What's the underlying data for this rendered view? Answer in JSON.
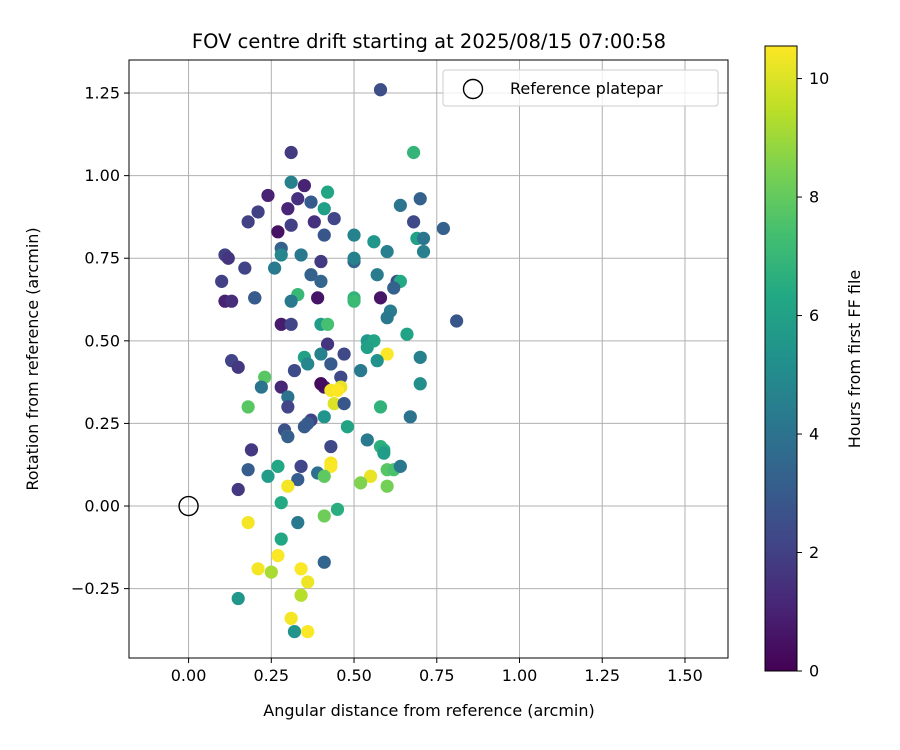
{
  "chart_data": {
    "type": "scatter",
    "title": "FOV centre drift starting at 2025/08/15 07:00:58",
    "xlabel": "Angular distance from reference (arcmin)",
    "ylabel": "Rotation from reference (arcmin)",
    "xlim": [
      -0.18,
      1.63
    ],
    "ylim": [
      -0.46,
      1.35
    ],
    "xticks": [
      0.0,
      0.25,
      0.5,
      0.75,
      1.0,
      1.25,
      1.5
    ],
    "xtick_labels": [
      "0.00",
      "0.25",
      "0.50",
      "0.75",
      "1.00",
      "1.25",
      "1.50"
    ],
    "yticks": [
      -0.25,
      0.0,
      0.25,
      0.5,
      0.75,
      1.0,
      1.25
    ],
    "ytick_labels": [
      "−0.25",
      "0.00",
      "0.25",
      "0.50",
      "0.75",
      "1.00",
      "1.25"
    ],
    "grid": true,
    "legend": {
      "placement": "top-right",
      "label": "Reference platepar"
    },
    "reference_point": {
      "x": 0.0,
      "y": 0.0
    },
    "colorbar": {
      "label": "Hours from first FF file",
      "min": 0,
      "max": 10.55,
      "colormap": "viridis",
      "ticks": [
        0,
        2,
        4,
        6,
        8,
        10
      ],
      "tick_labels": [
        "0",
        "2",
        "4",
        "6",
        "8",
        "10"
      ]
    },
    "points": [
      [
        0.58,
        1.26,
        2.5
      ],
      [
        0.31,
        1.07,
        1.8
      ],
      [
        0.68,
        1.07,
        6.9
      ],
      [
        0.31,
        0.98,
        4.6
      ],
      [
        0.35,
        0.97,
        1.0
      ],
      [
        0.42,
        0.95,
        6.2
      ],
      [
        0.7,
        0.93,
        3.3
      ],
      [
        0.24,
        0.94,
        1.0
      ],
      [
        0.33,
        0.93,
        1.5
      ],
      [
        0.37,
        0.92,
        3.0
      ],
      [
        0.41,
        0.9,
        5.9
      ],
      [
        0.3,
        0.9,
        1.1
      ],
      [
        0.21,
        0.89,
        2.0
      ],
      [
        0.44,
        0.87,
        2.2
      ],
      [
        0.64,
        0.91,
        4.1
      ],
      [
        0.18,
        0.86,
        2.0
      ],
      [
        0.31,
        0.85,
        2.0
      ],
      [
        0.38,
        0.86,
        1.5
      ],
      [
        0.68,
        0.86,
        2.3
      ],
      [
        0.77,
        0.84,
        3.3
      ],
      [
        0.27,
        0.83,
        0.5
      ],
      [
        0.5,
        0.82,
        4.7
      ],
      [
        0.41,
        0.82,
        2.8
      ],
      [
        0.69,
        0.81,
        6.0
      ],
      [
        0.71,
        0.81,
        4.1
      ],
      [
        0.56,
        0.8,
        5.5
      ],
      [
        0.28,
        0.78,
        3.3
      ],
      [
        0.6,
        0.77,
        4.5
      ],
      [
        0.11,
        0.76,
        2.0
      ],
      [
        0.12,
        0.75,
        1.6
      ],
      [
        0.28,
        0.76,
        4.8
      ],
      [
        0.34,
        0.76,
        4.2
      ],
      [
        0.4,
        0.74,
        1.8
      ],
      [
        0.5,
        0.74,
        3.4
      ],
      [
        0.5,
        0.75,
        4.6
      ],
      [
        0.71,
        0.77,
        4.5
      ],
      [
        0.17,
        0.72,
        2.1
      ],
      [
        0.26,
        0.72,
        4.3
      ],
      [
        0.37,
        0.7,
        3.3
      ],
      [
        0.57,
        0.7,
        4.4
      ],
      [
        0.1,
        0.68,
        2.0
      ],
      [
        0.4,
        0.68,
        3.4
      ],
      [
        0.63,
        0.68,
        2.5
      ],
      [
        0.64,
        0.68,
        6.4
      ],
      [
        0.62,
        0.66,
        3.3
      ],
      [
        0.33,
        0.64,
        7.0
      ],
      [
        0.11,
        0.62,
        1.0
      ],
      [
        0.13,
        0.62,
        1.4
      ],
      [
        0.2,
        0.63,
        2.3
      ],
      [
        0.2,
        0.63,
        3.0
      ],
      [
        0.39,
        0.63,
        0.6
      ],
      [
        0.5,
        0.63,
        6.8
      ],
      [
        0.58,
        0.63,
        0.6
      ],
      [
        0.5,
        0.62,
        7.1
      ],
      [
        0.31,
        0.62,
        4.2
      ],
      [
        0.61,
        0.59,
        4.4
      ],
      [
        0.6,
        0.57,
        4.2
      ],
      [
        0.81,
        0.56,
        2.8
      ],
      [
        0.28,
        0.55,
        0.8
      ],
      [
        0.31,
        0.55,
        2.2
      ],
      [
        0.4,
        0.55,
        5.8
      ],
      [
        0.42,
        0.55,
        7.4
      ],
      [
        0.66,
        0.52,
        6.1
      ],
      [
        0.54,
        0.5,
        5.6
      ],
      [
        0.56,
        0.5,
        6.2
      ],
      [
        0.42,
        0.49,
        1.6
      ],
      [
        0.54,
        0.48,
        5.9
      ],
      [
        0.4,
        0.46,
        4.6
      ],
      [
        0.47,
        0.46,
        2.3
      ],
      [
        0.6,
        0.46,
        10.5
      ],
      [
        0.35,
        0.45,
        6.0
      ],
      [
        0.7,
        0.45,
        4.6
      ],
      [
        0.13,
        0.44,
        2.1
      ],
      [
        0.36,
        0.43,
        4.8
      ],
      [
        0.15,
        0.42,
        1.7
      ],
      [
        0.43,
        0.43,
        3.0
      ],
      [
        0.57,
        0.44,
        5.3
      ],
      [
        0.32,
        0.41,
        2.4
      ],
      [
        0.52,
        0.41,
        4.3
      ],
      [
        0.46,
        0.39,
        2.3
      ],
      [
        0.23,
        0.39,
        7.8
      ],
      [
        0.22,
        0.36,
        4.0
      ],
      [
        0.28,
        0.36,
        1.2
      ],
      [
        0.4,
        0.37,
        1.0
      ],
      [
        0.41,
        0.36,
        0.7
      ],
      [
        0.4,
        0.37,
        0.3
      ],
      [
        0.43,
        0.35,
        10.4
      ],
      [
        0.46,
        0.36,
        10.2
      ],
      [
        0.45,
        0.35,
        10.6
      ],
      [
        0.7,
        0.37,
        5.2
      ],
      [
        0.3,
        0.33,
        4.0
      ],
      [
        0.44,
        0.31,
        10.0
      ],
      [
        0.47,
        0.31,
        2.8
      ],
      [
        0.18,
        0.3,
        7.8
      ],
      [
        0.3,
        0.3,
        2.2
      ],
      [
        0.58,
        0.3,
        6.8
      ],
      [
        0.37,
        0.26,
        2.1
      ],
      [
        0.41,
        0.27,
        5.4
      ],
      [
        0.67,
        0.27,
        4.0
      ],
      [
        0.36,
        0.25,
        3.0
      ],
      [
        0.35,
        0.24,
        3.0
      ],
      [
        0.48,
        0.24,
        6.1
      ],
      [
        0.29,
        0.23,
        2.6
      ],
      [
        0.3,
        0.21,
        10.1
      ],
      [
        0.54,
        0.2,
        4.3
      ],
      [
        0.58,
        0.18,
        6.7
      ],
      [
        0.59,
        0.17,
        6.5
      ],
      [
        0.19,
        0.17,
        1.7
      ],
      [
        0.3,
        0.21,
        3.2
      ],
      [
        0.43,
        0.18,
        2.3
      ],
      [
        0.59,
        0.16,
        5.8
      ],
      [
        0.43,
        0.13,
        10.4
      ],
      [
        0.6,
        0.11,
        7.8
      ],
      [
        0.18,
        0.11,
        3.1
      ],
      [
        0.27,
        0.12,
        6.3
      ],
      [
        0.34,
        0.12,
        2.2
      ],
      [
        0.43,
        0.12,
        10.5
      ],
      [
        0.62,
        0.11,
        7.5
      ],
      [
        0.64,
        0.12,
        4.2
      ],
      [
        0.39,
        0.1,
        3.8
      ],
      [
        0.24,
        0.09,
        5.8
      ],
      [
        0.41,
        0.09,
        7.9
      ],
      [
        0.55,
        0.09,
        10.2
      ],
      [
        0.33,
        0.08,
        3.1
      ],
      [
        0.52,
        0.07,
        8.5
      ],
      [
        0.15,
        0.05,
        1.7
      ],
      [
        0.3,
        0.06,
        10.4
      ],
      [
        0.6,
        0.06,
        8.3
      ],
      [
        0.28,
        0.01,
        6.4
      ],
      [
        0.45,
        -0.01,
        6.6
      ],
      [
        0.41,
        -0.03,
        8.2
      ],
      [
        0.18,
        -0.05,
        10.4
      ],
      [
        0.33,
        -0.05,
        4.3
      ],
      [
        0.28,
        -0.1,
        6.3
      ],
      [
        0.27,
        -0.15,
        10.5
      ],
      [
        0.21,
        -0.19,
        10.4
      ],
      [
        0.34,
        -0.19,
        10.5
      ],
      [
        0.41,
        -0.17,
        3.4
      ],
      [
        0.25,
        -0.2,
        9.2
      ],
      [
        0.36,
        -0.23,
        10.3
      ],
      [
        0.34,
        -0.27,
        9.4
      ],
      [
        0.15,
        -0.28,
        5.5
      ],
      [
        0.31,
        -0.34,
        10.4
      ],
      [
        0.32,
        -0.38,
        5.4
      ],
      [
        0.36,
        -0.38,
        10.5
      ]
    ]
  }
}
